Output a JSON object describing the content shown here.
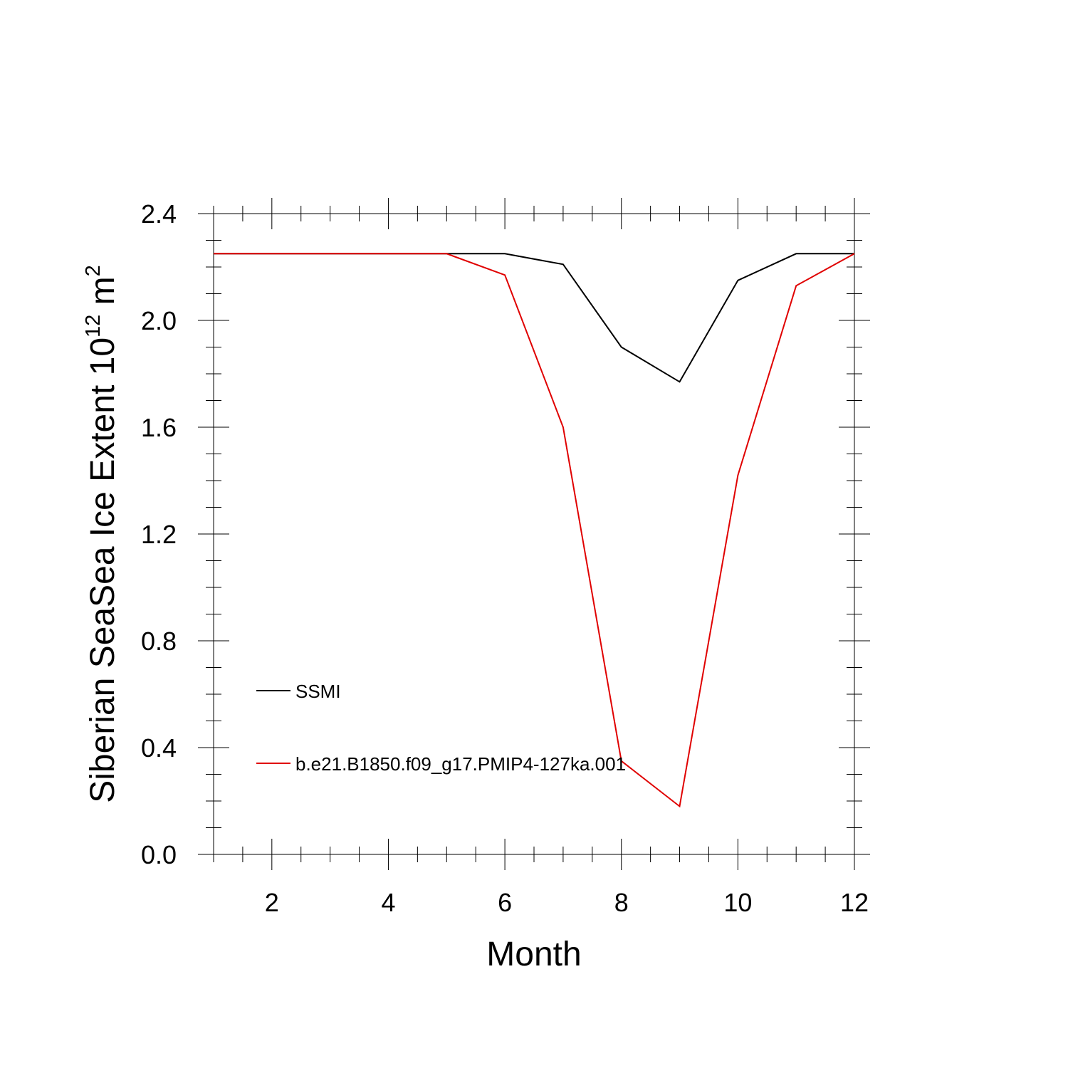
{
  "chart_data": {
    "type": "line",
    "xlabel": "Month",
    "ylabel": {
      "prefix": "Siberian SeaSea Ice Extent 10",
      "exp1": "12",
      "unit": " m",
      "exp2": "2"
    },
    "xlim": [
      1,
      12
    ],
    "ylim": [
      0,
      2.4
    ],
    "xticks": [
      2,
      4,
      6,
      8,
      10,
      12
    ],
    "xtick_labels": [
      "2",
      "4",
      "6",
      "8",
      "10",
      "12"
    ],
    "yticks": [
      0,
      0.4,
      0.8,
      1.2,
      1.6,
      2.0,
      2.4
    ],
    "ytick_labels": [
      "0.0",
      "0.4",
      "0.8",
      "1.2",
      "1.6",
      "2.0",
      "2.4"
    ],
    "x": [
      1,
      2,
      3,
      4,
      5,
      6,
      7,
      8,
      9,
      10,
      11,
      12
    ],
    "series": [
      {
        "name": "SSMI",
        "color": "#000000",
        "values": [
          2.25,
          2.25,
          2.25,
          2.25,
          2.25,
          2.25,
          2.21,
          1.9,
          1.77,
          2.15,
          2.25,
          2.25
        ]
      },
      {
        "name": "b.e21.B1850.f09_g17.PMIP4-127ka.001",
        "color": "#e00000",
        "values": [
          2.25,
          2.25,
          2.25,
          2.25,
          2.25,
          2.17,
          1.6,
          0.35,
          0.18,
          1.42,
          2.13,
          2.25
        ]
      }
    ],
    "grid": false,
    "legend_position": "lower-left"
  }
}
